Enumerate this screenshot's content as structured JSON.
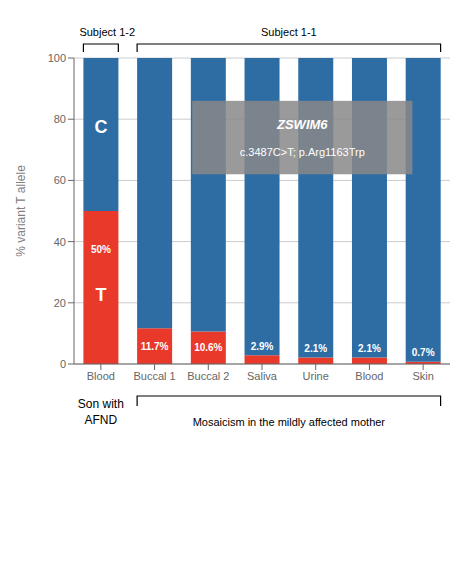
{
  "chart_data": {
    "type": "bar",
    "stacked": true,
    "categories": [
      "Blood",
      "Buccal 1",
      "Buccal 2",
      "Saliva",
      "Urine",
      "Blood",
      "Skin"
    ],
    "series": [
      {
        "name": "T",
        "color": "#e8392a",
        "values": [
          50.0,
          11.7,
          10.6,
          2.9,
          2.1,
          2.1,
          0.7
        ],
        "data_labels": true,
        "value_labels": [
          "50%",
          "11.7%",
          "10.6%",
          "2.9%",
          "2.1%",
          "2.1%",
          "0.7%"
        ]
      },
      {
        "name": "C",
        "color": "#2e6da4",
        "values": [
          50.0,
          88.3,
          89.4,
          97.1,
          97.9,
          97.9,
          99.3
        ]
      }
    ],
    "y_label": "% variant T allele",
    "ylim": [
      0,
      100
    ],
    "yticks": [
      0,
      20,
      40,
      60,
      80,
      100
    ],
    "grid": true,
    "annotations": [
      "ZSWIM6",
      "c.3487C>T; p.Arg1163Trp",
      "Subject 1-2",
      "Subject 1-1",
      "Son with",
      "AFND",
      "Mosaicism in the mildly affected mother"
    ]
  }
}
